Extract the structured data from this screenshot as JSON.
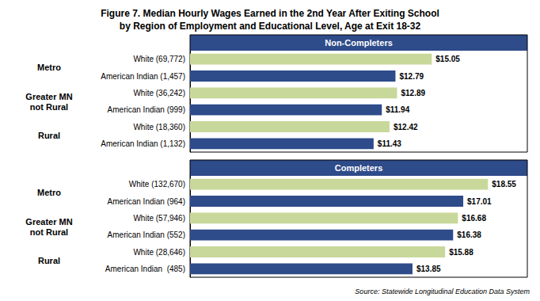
{
  "chart_data": [
    {
      "type": "bar",
      "orientation": "horizontal",
      "title": "Figure 7. Median Hourly Wages Earned in the 2nd Year After Exiting School\nby Region of Employment and Educational Level, Age at Exit 18-32",
      "subtitle": "Non-Completers",
      "categories": [
        "White (69,772)",
        "American Indian (1,457)",
        "White (36,242)",
        "American Indian (999)",
        "White (18,360)",
        "American Indian (1,132)"
      ],
      "values": [
        15.05,
        12.79,
        12.89,
        11.94,
        12.42,
        11.43
      ],
      "value_labels": [
        "$15.05",
        "$12.79",
        "$12.89",
        "$11.94",
        "$12.42",
        "$11.43"
      ],
      "colors": [
        "#c8d89a",
        "#2e4b8a",
        "#c8d89a",
        "#2e4b8a",
        "#c8d89a",
        "#2e4b8a"
      ],
      "annotations": [
        {
          "text": "Metro",
          "rows": [
            0,
            1
          ]
        },
        {
          "text": "Greater MN\nnot Rural",
          "rows": [
            2,
            3
          ]
        },
        {
          "text": "Rural",
          "rows": [
            4,
            5
          ]
        }
      ],
      "xlim": [
        0,
        21
      ],
      "data_labels": true,
      "tick_labels": "y",
      "grid": false
    },
    {
      "type": "bar",
      "orientation": "horizontal",
      "subtitle": "Completers",
      "categories": [
        "White (132,670)",
        "American Indian (964)",
        "White (57,946)",
        "American Indian (552)",
        "White (28,646)",
        "American Indian  (485)"
      ],
      "values": [
        18.55,
        17.01,
        16.68,
        16.38,
        15.88,
        13.85
      ],
      "value_labels": [
        "$18.55",
        "$17.01",
        "$16.68",
        "$16.38",
        "$15.88",
        "$13.85"
      ],
      "colors": [
        "#c8d89a",
        "#2e4b8a",
        "#c8d89a",
        "#2e4b8a",
        "#c8d89a",
        "#2e4b8a"
      ],
      "annotations": [
        {
          "text": "Metro",
          "rows": [
            0,
            1
          ]
        },
        {
          "text": "Greater MN\nnot Rural",
          "rows": [
            2,
            3
          ]
        },
        {
          "text": "Rural",
          "rows": [
            4,
            5
          ]
        }
      ],
      "source": "Source: Statewide Longitudinal Education Data System",
      "xlim": [
        0,
        21
      ],
      "data_labels": true,
      "tick_labels": "y",
      "grid": false
    }
  ]
}
